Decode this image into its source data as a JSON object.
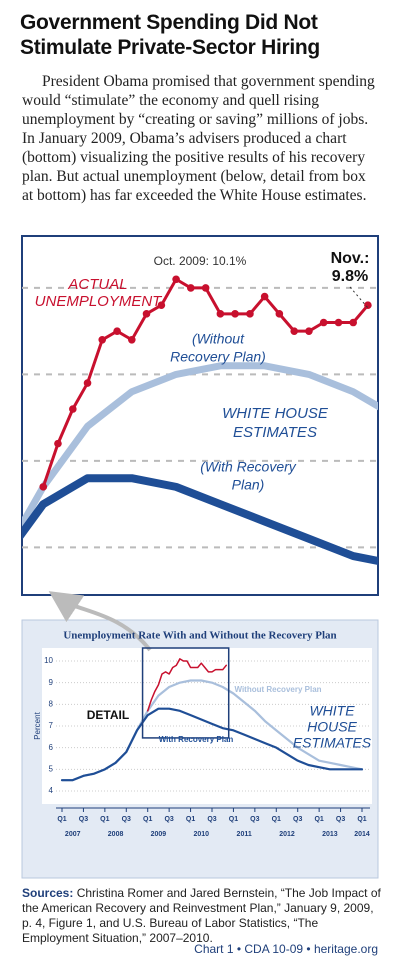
{
  "header": {
    "title": "Government Spending Did Not Stimulate Private-Sector Hiring",
    "intro": "President Obama promised that government spending would “stimulate” the economy and quell rising unemployment by “creating or saving” millions of jobs. In January 2009, Obama’s advisers produced a chart (bottom) visualizing the positive results of his recovery plan. But actual unemployment (below, detail from box at bottom) has far exceeded the White House estimates."
  },
  "chart_data": [
    {
      "type": "line",
      "xlim": [
        2008.88,
        2010.89
      ],
      "ylim": [
        6.45,
        10.6
      ],
      "yticks": [
        7,
        8,
        9,
        10
      ],
      "grid": true,
      "annotations": {
        "actual": [
          "ACTUAL",
          "UNEMPLOYMENT"
        ],
        "peak": "Oct. 2009: 10.1%",
        "latest": [
          "Nov.:",
          "9.8%"
        ],
        "without": [
          "(Without",
          "Recovery Plan)"
        ],
        "estimates": [
          "WHITE HOUSE",
          "ESTIMATES"
        ],
        "with": [
          "(With Recovery",
          "Plan)"
        ]
      }
    },
    {
      "type": "line",
      "title": "Unemployment Rate With and Without the Recovery Plan",
      "y_label": "Percent",
      "xlim": [
        2007,
        2014
      ],
      "ylim": [
        4,
        10
      ],
      "yticks": [
        4,
        5,
        6,
        7,
        8,
        9,
        10
      ],
      "grid": true,
      "xticks": [
        {
          "value": 2007,
          "label": "Q1"
        },
        {
          "value": 2007.5,
          "label": "Q3"
        },
        {
          "value": 2008,
          "label": "Q1"
        },
        {
          "value": 2008.5,
          "label": "Q3"
        },
        {
          "value": 2009,
          "label": "Q1"
        },
        {
          "value": 2009.5,
          "label": "Q3"
        },
        {
          "value": 2010,
          "label": "Q1"
        },
        {
          "value": 2010.5,
          "label": "Q3"
        },
        {
          "value": 2011,
          "label": "Q1"
        },
        {
          "value": 2011.5,
          "label": "Q3"
        },
        {
          "value": 2012,
          "label": "Q1"
        },
        {
          "value": 2012.5,
          "label": "Q3"
        },
        {
          "value": 2013,
          "label": "Q1"
        },
        {
          "value": 2013.5,
          "label": "Q3"
        },
        {
          "value": 2014,
          "label": "Q1"
        }
      ],
      "year_ticks": [
        2007,
        2008,
        2009,
        2010,
        2011,
        2012,
        2013,
        2014
      ],
      "detail_label": "DETAIL",
      "estimates_label": [
        "WHITE",
        "HOUSE",
        "ESTIMATES"
      ],
      "series": [
        {
          "name": "Without Recovery Plan",
          "color": "#a9bfdc",
          "x": [
            2007,
            2007.25,
            2007.5,
            2007.75,
            2008,
            2008.25,
            2008.5,
            2008.75,
            2009,
            2009.25,
            2009.5,
            2009.75,
            2010,
            2010.25,
            2010.5,
            2010.75,
            2011,
            2011.25,
            2011.5,
            2011.75,
            2012,
            2012.25,
            2012.5,
            2012.75,
            2013,
            2013.25,
            2013.5,
            2013.75,
            2014
          ],
          "values": [
            4.5,
            4.5,
            4.7,
            4.8,
            5.0,
            5.3,
            5.8,
            6.8,
            7.7,
            8.4,
            8.8,
            9.0,
            9.1,
            9.1,
            9.0,
            8.8,
            8.5,
            8.1,
            7.7,
            7.2,
            6.8,
            6.4,
            6.0,
            5.7,
            5.4,
            5.3,
            5.2,
            5.1,
            5.0
          ]
        },
        {
          "name": "With Recovery Plan",
          "color": "#1f4e96",
          "x": [
            2007,
            2007.25,
            2007.5,
            2007.75,
            2008,
            2008.25,
            2008.5,
            2008.75,
            2009,
            2009.25,
            2009.5,
            2009.75,
            2010,
            2010.25,
            2010.5,
            2010.75,
            2011,
            2011.25,
            2011.5,
            2011.75,
            2012,
            2012.25,
            2012.5,
            2012.75,
            2013,
            2013.25,
            2013.5,
            2013.75,
            2014
          ],
          "values": [
            4.5,
            4.5,
            4.7,
            4.8,
            5.0,
            5.3,
            5.8,
            6.8,
            7.5,
            7.8,
            7.8,
            7.7,
            7.5,
            7.3,
            7.1,
            6.9,
            6.8,
            6.6,
            6.4,
            6.2,
            6.0,
            5.7,
            5.4,
            5.2,
            5.1,
            5.0,
            5.0,
            5.0,
            5.0
          ]
        },
        {
          "color": "#c8102e",
          "x": [
            2009,
            2009.083,
            2009.167,
            2009.25,
            2009.333,
            2009.417,
            2009.5,
            2009.583,
            2009.667,
            2009.75,
            2009.833,
            2009.917,
            2010,
            2010.083,
            2010.167,
            2010.25,
            2010.333,
            2010.417,
            2010.5,
            2010.583,
            2010.667,
            2010.75,
            2010.833
          ],
          "values": [
            7.7,
            8.2,
            8.6,
            8.9,
            9.4,
            9.5,
            9.4,
            9.7,
            9.8,
            10.1,
            10.0,
            10.0,
            9.7,
            9.7,
            9.7,
            9.9,
            9.7,
            9.5,
            9.5,
            9.6,
            9.6,
            9.6,
            9.8
          ]
        }
      ]
    }
  ],
  "sources": {
    "label": "Sources:",
    "text": "Christina Romer and Jared Bernstein, “The Job Impact of the American Recovery and Reinvestment Plan,” January 9, 2009, p. 4, Figure 1, and U.S. Bureau of Labor Statistics, “The Employment Situation,” 2007–2010."
  },
  "footer": {
    "chart_label": "Chart 1 • CDA 10-09",
    "site": "heritage.org"
  }
}
